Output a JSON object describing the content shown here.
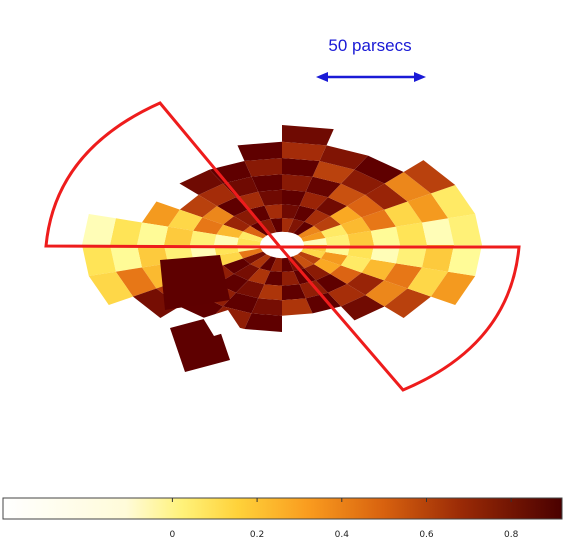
{
  "scale_bar": {
    "label": "50 parsecs",
    "color": "#1a1ad6"
  },
  "colorbar": {
    "tick_labels": [
      "0",
      "0.2",
      "0.4",
      "0.6",
      "0.8"
    ],
    "tick_values": [
      0,
      0.2,
      0.4,
      0.6,
      0.8
    ],
    "range": [
      -0.4,
      0.92
    ],
    "colormap": "afmhot-reversed"
  },
  "overlay_color": "#ee1c1c"
}
